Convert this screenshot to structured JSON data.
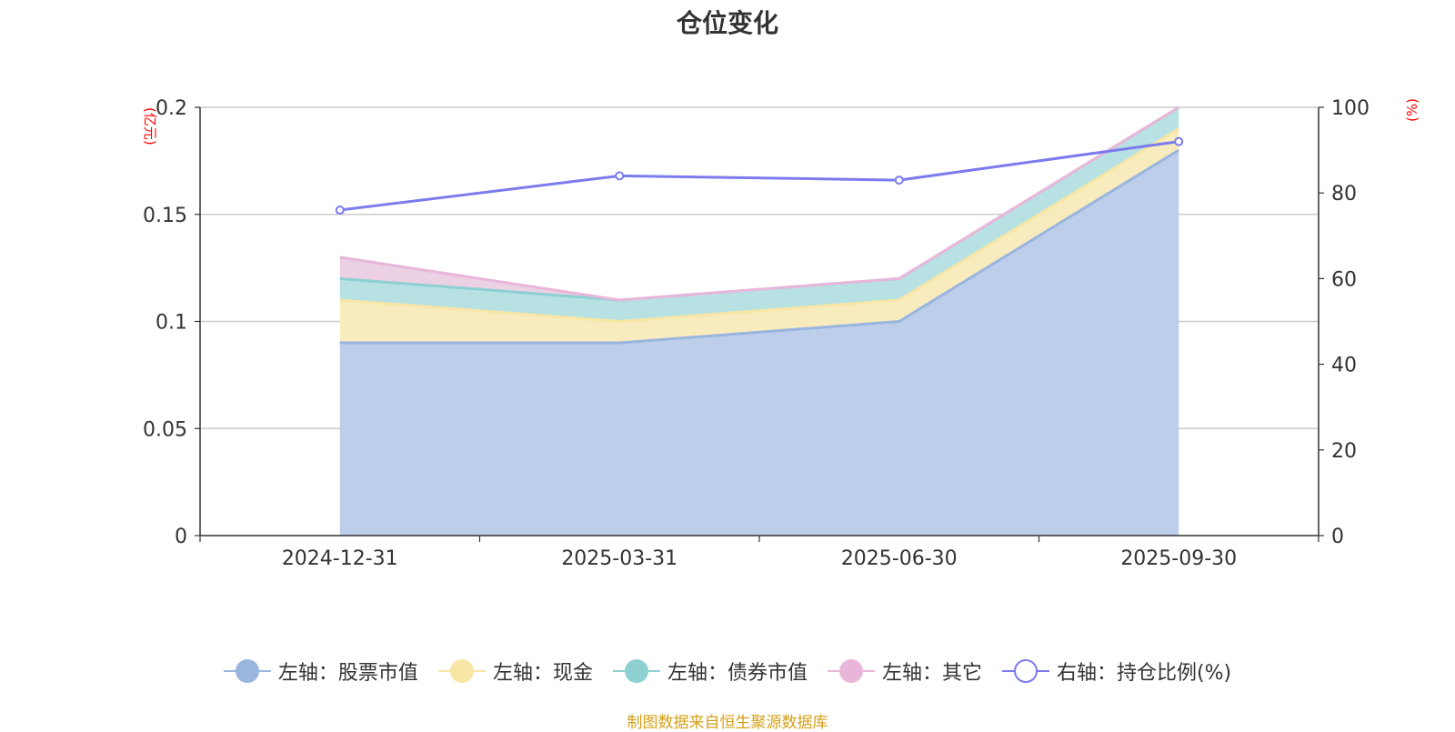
{
  "chart_data": {
    "type": "area",
    "title": "仓位变化",
    "categories": [
      "2024-12-31",
      "2025-03-31",
      "2025-06-30",
      "2025-09-30"
    ],
    "left_axis": {
      "unit_label": "(亿元)",
      "ylim": [
        0,
        0.2
      ],
      "ticks": [
        "0",
        "0.05",
        "0.1",
        "0.15",
        "0.2"
      ],
      "tick_values": [
        0,
        0.05,
        0.1,
        0.15,
        0.2
      ]
    },
    "right_axis": {
      "unit_label": "(%)",
      "ylim": [
        0,
        100
      ],
      "ticks": [
        "0",
        "20",
        "40",
        "60",
        "80",
        "100"
      ],
      "tick_values": [
        0,
        20,
        40,
        60,
        80,
        100
      ]
    },
    "series": [
      {
        "name": "左轴：股票市值",
        "axis": "left",
        "stacked": true,
        "values": [
          0.09,
          0.09,
          0.1,
          0.18
        ],
        "line_color": "#9ab5de",
        "fill_color": "#b8cbe9"
      },
      {
        "name": "左轴：现金",
        "axis": "left",
        "stacked": true,
        "values": [
          0.02,
          0.01,
          0.01,
          0.01
        ],
        "line_color": "#f7e6a6",
        "fill_color": "#f8ebbb"
      },
      {
        "name": "左轴：债券市值",
        "axis": "left",
        "stacked": true,
        "values": [
          0.01,
          0.01,
          0.01,
          0.01
        ],
        "line_color": "#8ed0d2",
        "fill_color": "#b3dfe0"
      },
      {
        "name": "左轴：其它",
        "axis": "left",
        "stacked": true,
        "values": [
          0.01,
          0.0,
          0.0,
          0.0
        ],
        "line_color": "#e9b6da",
        "fill_color": "#ebcfe3"
      },
      {
        "name": "右轴：持仓比例(%)",
        "axis": "right",
        "type": "line",
        "values": [
          76,
          84,
          83,
          92
        ],
        "line_color": "#7b7bee"
      }
    ],
    "legend_position": "bottom",
    "grid": true
  },
  "source_note": "制图数据来自恒生聚源数据库"
}
